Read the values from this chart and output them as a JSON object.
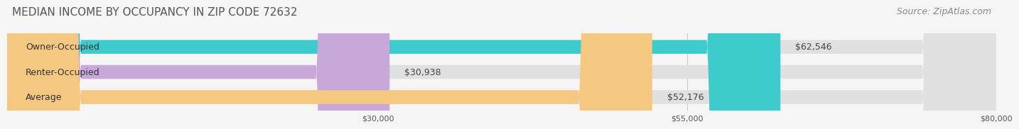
{
  "title": "MEDIAN INCOME BY OCCUPANCY IN ZIP CODE 72632",
  "source": "Source: ZipAtlas.com",
  "categories": [
    "Owner-Occupied",
    "Renter-Occupied",
    "Average"
  ],
  "values": [
    62546,
    30938,
    52176
  ],
  "bar_colors": [
    "#3ecbcb",
    "#c8a8d8",
    "#f5c882"
  ],
  "bar_bg_color": "#e0e0e0",
  "labels": [
    "$62,546",
    "$30,938",
    "$52,176"
  ],
  "xlim": [
    0,
    80000
  ],
  "xticks": [
    30000,
    55000,
    80000
  ],
  "xtick_labels": [
    "$30,000",
    "$55,000",
    "$80,000"
  ],
  "title_fontsize": 11,
  "source_fontsize": 9,
  "label_fontsize": 9,
  "cat_fontsize": 9,
  "bar_height": 0.55,
  "bg_color": "#f5f5f5"
}
